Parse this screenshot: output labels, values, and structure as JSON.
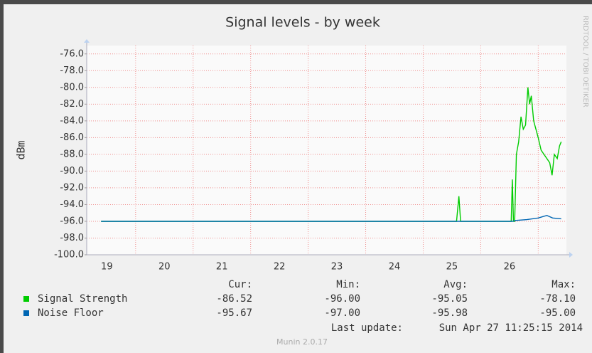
{
  "chart_data": {
    "type": "line",
    "title": "Signal levels - by week",
    "y_label": "dBm",
    "side_text": "RRDTOOL / TOBI OETIKER",
    "xlim": [
      19.15,
      27.49
    ],
    "xticks": [
      {
        "value": 19.5,
        "label": "19"
      },
      {
        "value": 20.5,
        "label": "20"
      },
      {
        "value": 21.5,
        "label": "21"
      },
      {
        "value": 22.5,
        "label": "22"
      },
      {
        "value": 23.5,
        "label": "23"
      },
      {
        "value": 24.5,
        "label": "24"
      },
      {
        "value": 25.5,
        "label": "25"
      },
      {
        "value": 26.5,
        "label": "26"
      }
    ],
    "xgrid": [
      20,
      21,
      22,
      23,
      24,
      25,
      26,
      27
    ],
    "ylim": [
      -100,
      -75
    ],
    "yticks": [
      {
        "value": -100,
        "label": "-100.0"
      },
      {
        "value": -98,
        "label": "-98.0"
      },
      {
        "value": -96,
        "label": "-96.0"
      },
      {
        "value": -94,
        "label": "-94.0"
      },
      {
        "value": -92,
        "label": "-92.0"
      },
      {
        "value": -90,
        "label": "-90.0"
      },
      {
        "value": -88,
        "label": "-88.0"
      },
      {
        "value": -86,
        "label": "-86.0"
      },
      {
        "value": -84,
        "label": "-84.0"
      },
      {
        "value": -82,
        "label": "-82.0"
      },
      {
        "value": -80,
        "label": "-80.0"
      },
      {
        "value": -78,
        "label": "-78.0"
      },
      {
        "value": -76,
        "label": "-76.0"
      }
    ],
    "grid": true,
    "series": [
      {
        "name": "Signal Strength",
        "color": "#00cc00",
        "x": [
          19.4,
          25.58,
          25.62,
          25.65,
          26.53,
          26.55,
          26.57,
          26.59,
          26.62,
          26.66,
          26.7,
          26.74,
          26.78,
          26.82,
          26.85,
          26.88,
          26.92,
          26.96,
          27.0,
          27.05,
          27.1,
          27.15,
          27.2,
          27.24,
          27.28,
          27.33,
          27.37,
          27.4
        ],
        "values": [
          -96,
          -96,
          -93,
          -96,
          -96,
          -91,
          -96,
          -96,
          -88,
          -86.5,
          -83.5,
          -85,
          -84.5,
          -80,
          -82,
          -81,
          -84,
          -85,
          -86,
          -87.5,
          -88,
          -88.5,
          -89,
          -90.5,
          -88,
          -88.5,
          -87,
          -86.5
        ]
      },
      {
        "name": "Noise Floor",
        "color": "#0066b3",
        "x": [
          19.4,
          26.55,
          26.6,
          26.8,
          27.0,
          27.15,
          27.25,
          27.4
        ],
        "values": [
          -96,
          -96,
          -95.9,
          -95.8,
          -95.6,
          -95.3,
          -95.6,
          -95.7
        ]
      }
    ],
    "legend_stats": {
      "headers": [
        "Cur:",
        "Min:",
        "Avg:",
        "Max:"
      ],
      "rows": [
        [
          "-86.52",
          "-96.00",
          "-95.05",
          "-78.10"
        ],
        [
          "-95.67",
          "-97.00",
          "-95.98",
          "-95.00"
        ]
      ]
    },
    "last_update_label": "Last update:",
    "last_update": "Sun Apr 27 11:25:15 2014",
    "footer": "Munin 2.0.17"
  }
}
